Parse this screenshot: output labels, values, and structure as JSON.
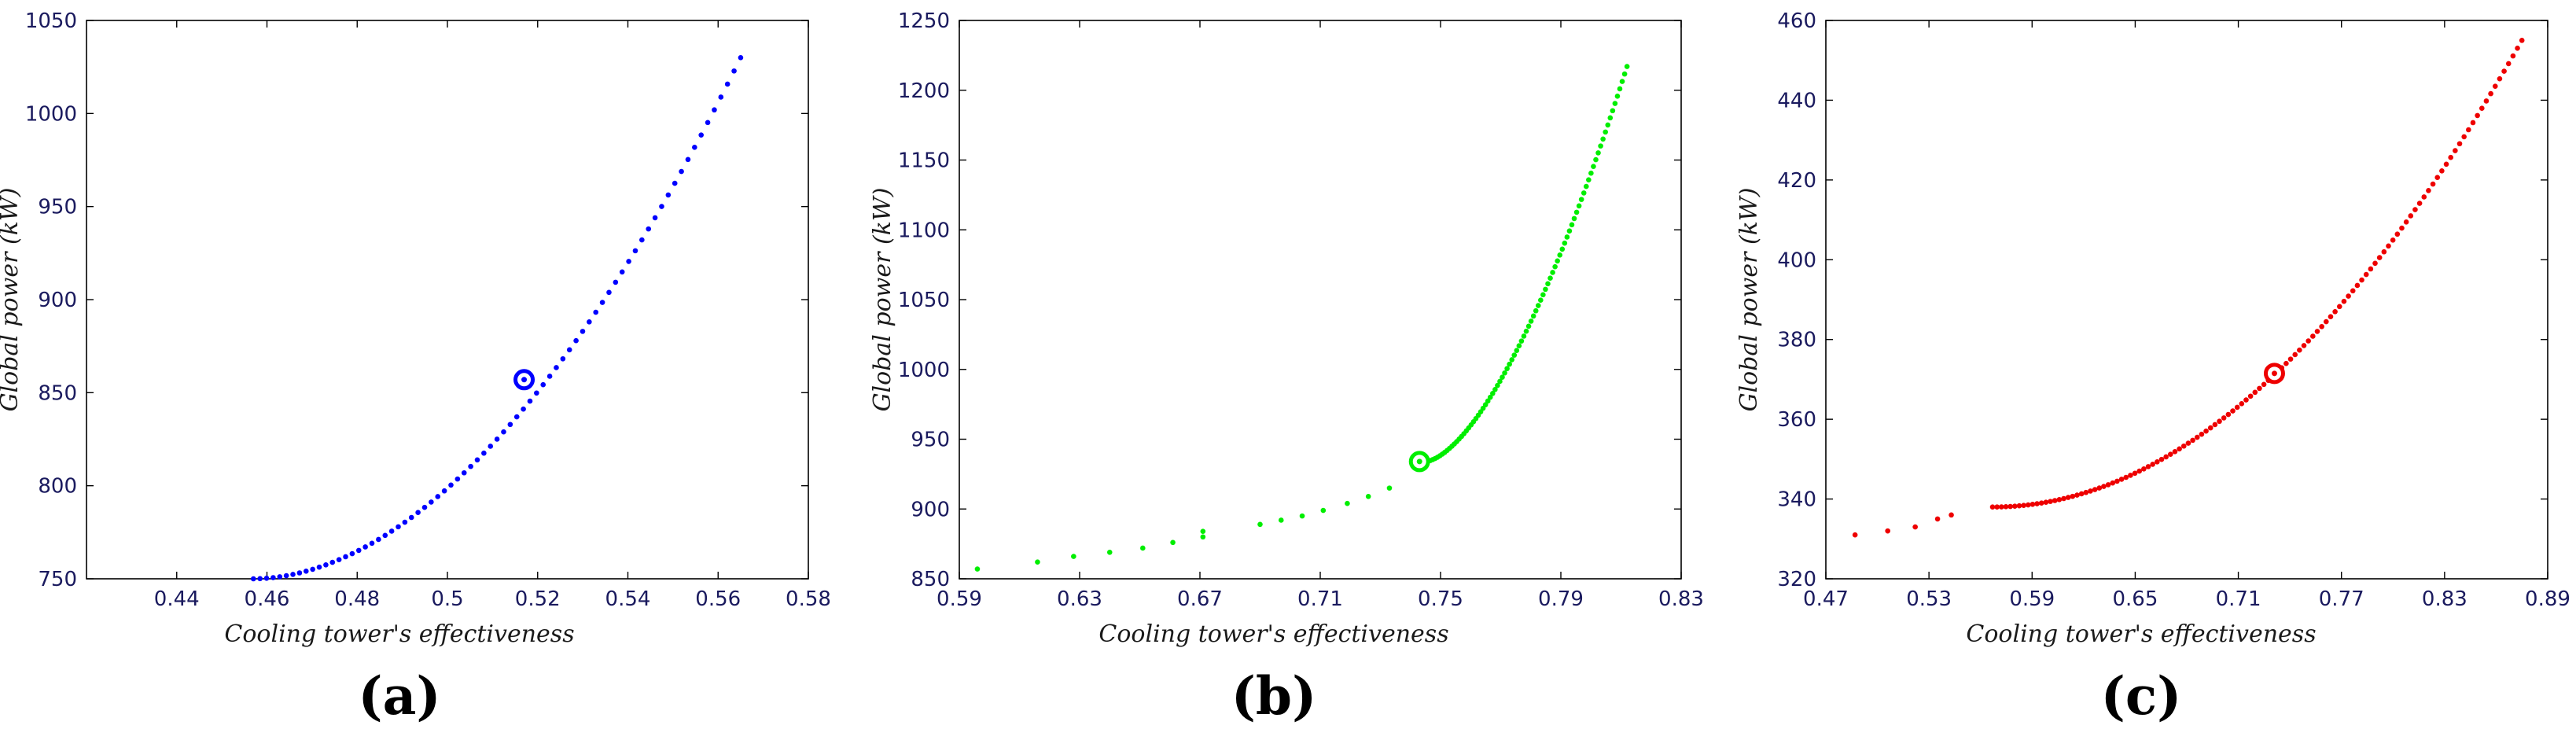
{
  "chart_data": [
    {
      "type": "scatter",
      "panel_label": "(a)",
      "xlabel": "Cooling tower's effectiveness",
      "ylabel": "Global power (kW)",
      "xlim": [
        0.42,
        0.58
      ],
      "ylim": [
        750,
        1050
      ],
      "xticks": [
        "0.44",
        "0.46",
        "0.48",
        "0.5",
        "0.52",
        "0.54",
        "0.56",
        "0.58"
      ],
      "yticks": [
        "750",
        "800",
        "850",
        "900",
        "950",
        "1000",
        "1050"
      ],
      "color": "#0000ff",
      "curve": {
        "x_start": 0.457,
        "x_end": 0.565,
        "y_start": 750,
        "y_end": 1030,
        "points": 75,
        "curvature": 1.9
      },
      "highlight": {
        "x": 0.517,
        "y": 857
      },
      "grid": false
    },
    {
      "type": "scatter",
      "panel_label": "(b)",
      "xlabel": "Cooling tower's effectiveness",
      "ylabel": "Global power (kW)",
      "xlim": [
        0.59,
        0.83
      ],
      "ylim": [
        850,
        1250
      ],
      "xticks": [
        "0.59",
        "0.63",
        "0.67",
        "0.71",
        "0.75",
        "0.79",
        "0.83"
      ],
      "yticks": [
        "850",
        "900",
        "950",
        "1000",
        "1050",
        "1100",
        "1150",
        "1200",
        "1250"
      ],
      "color": "#00ee00",
      "sparse_points": [
        [
          0.596,
          857
        ],
        [
          0.616,
          862
        ],
        [
          0.628,
          866
        ],
        [
          0.64,
          869
        ],
        [
          0.651,
          872
        ],
        [
          0.661,
          876
        ],
        [
          0.671,
          880
        ],
        [
          0.671,
          884
        ],
        [
          0.69,
          889
        ],
        [
          0.697,
          892
        ],
        [
          0.704,
          895
        ],
        [
          0.711,
          899
        ],
        [
          0.719,
          904
        ],
        [
          0.726,
          909
        ],
        [
          0.733,
          915
        ]
      ],
      "curve": {
        "x_start": 0.745,
        "x_end": 0.812,
        "y_start": 934,
        "y_end": 1217,
        "points": 85,
        "curvature": 1.6
      },
      "highlight": {
        "x": 0.743,
        "y": 934
      },
      "grid": false
    },
    {
      "type": "scatter",
      "panel_label": "(c)",
      "xlabel": "Cooling tower's effectiveness",
      "ylabel": "Global power (kW)",
      "xlim": [
        0.47,
        0.89
      ],
      "ylim": [
        320,
        460
      ],
      "xticks": [
        "0.47",
        "0.53",
        "0.59",
        "0.65",
        "0.71",
        "0.77",
        "0.83",
        "0.89"
      ],
      "yticks": [
        "320",
        "340",
        "360",
        "380",
        "400",
        "420",
        "440",
        "460"
      ],
      "color": "#ee0000",
      "sparse_points": [
        [
          0.487,
          331
        ],
        [
          0.506,
          332
        ],
        [
          0.522,
          333
        ],
        [
          0.535,
          335
        ],
        [
          0.543,
          336
        ]
      ],
      "curve": {
        "x_start": 0.567,
        "x_end": 0.875,
        "y_start": 338,
        "y_end": 455,
        "points": 120,
        "curvature": 2.0
      },
      "highlight": {
        "x": 0.731,
        "y": 371.5
      },
      "grid": false
    }
  ]
}
